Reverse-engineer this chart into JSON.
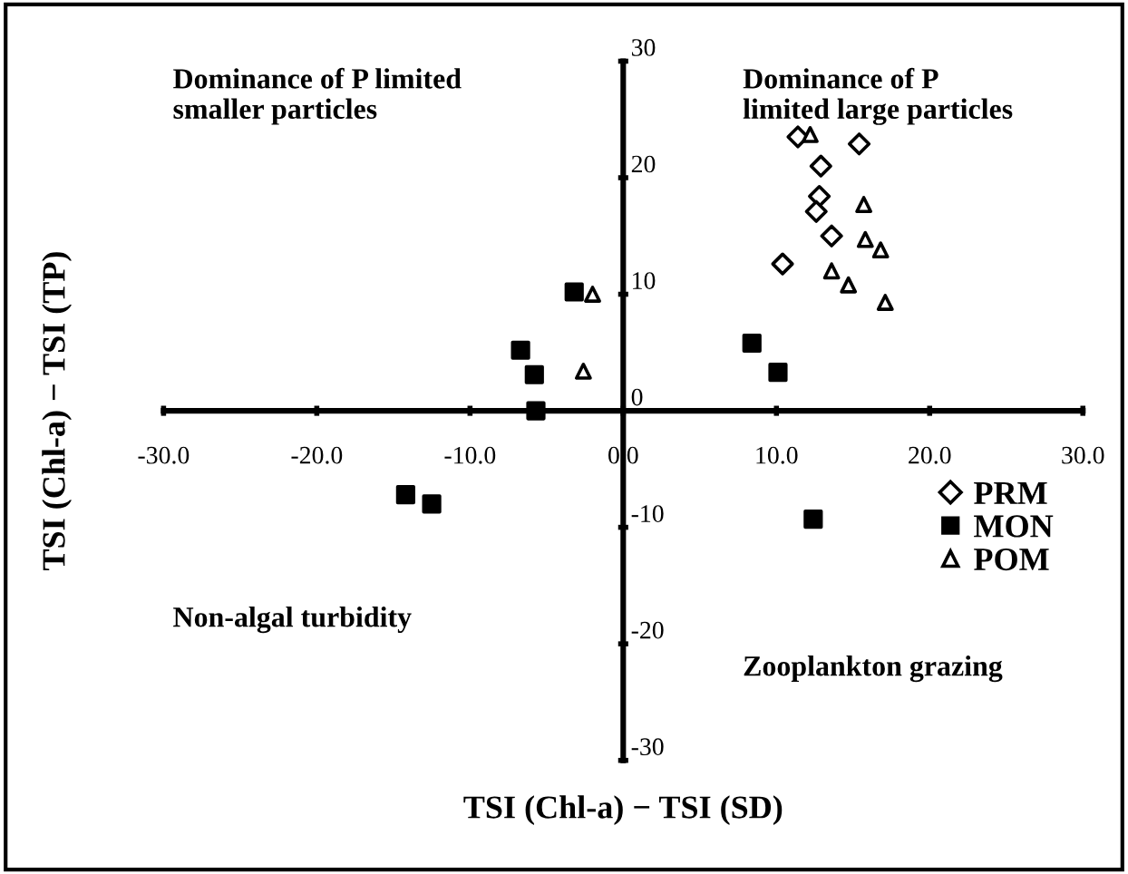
{
  "chart_data": {
    "type": "scatter",
    "xlabel": "TSI (Chl-a) − TSI (SD)",
    "ylabel": "TSI (Chl-a) − TSI (TP)",
    "xlim": [
      -30,
      30
    ],
    "ylim": [
      -30,
      30
    ],
    "xticks": [
      {
        "value": -30,
        "label": "-30.0"
      },
      {
        "value": -20,
        "label": "-20.0"
      },
      {
        "value": -10,
        "label": "-10.0"
      },
      {
        "value": 0,
        "label": "0.0"
      },
      {
        "value": 10,
        "label": "10.0"
      },
      {
        "value": 20,
        "label": "20.0"
      },
      {
        "value": 30,
        "label": "30.0"
      }
    ],
    "yticks": [
      -30,
      -20,
      -10,
      0,
      10,
      20,
      30
    ],
    "grid": false,
    "legend": "bottom right",
    "series": [
      {
        "name": "PRM",
        "color": "#000000",
        "marker": "diamond",
        "x": [
          11.4,
          15.4,
          12.9,
          12.8,
          12.6,
          13.6,
          10.4
        ],
        "values": [
          23.5,
          22.9,
          21.0,
          18.4,
          17.1,
          15.0,
          12.6
        ]
      },
      {
        "name": "MON",
        "color": "#000000",
        "marker": "square",
        "x": [
          -3.2,
          -6.7,
          -5.8,
          -5.7,
          8.4,
          10.1,
          -14.2,
          -12.5,
          12.4
        ],
        "values": [
          10.2,
          5.2,
          3.1,
          0,
          5.8,
          3.3,
          -7.2,
          -8.0,
          -9.3
        ]
      },
      {
        "name": "POM",
        "color": "#000000",
        "marker": "triangle",
        "x": [
          12.2,
          15.7,
          15.8,
          16.8,
          13.6,
          14.7,
          17.1,
          -2.0,
          -2.6
        ],
        "values": [
          23.7,
          17.7,
          14.7,
          13.8,
          12.0,
          10.8,
          9.3,
          10.0,
          3.4
        ]
      }
    ],
    "annotations": [
      "Dominance of P limited\nsmaller particles",
      "Dominance of P\nlimited large particles",
      "Non-algal turbidity",
      "Zooplankton grazing"
    ]
  }
}
